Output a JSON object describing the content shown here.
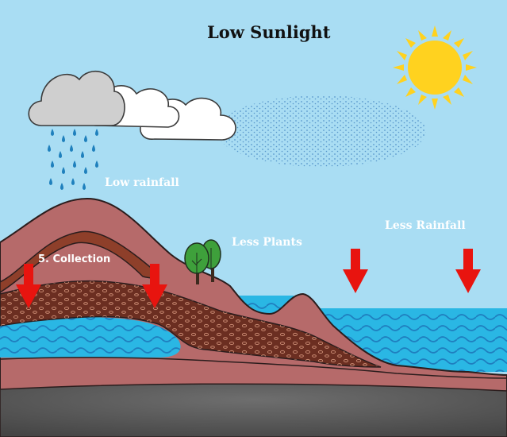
{
  "title": "Low Sunlight",
  "labels": {
    "low_rainfall": "Low rainfall",
    "less_plants": "Less Plants",
    "less_rainfall": "Less Rainfall",
    "collection": "5. Collection"
  },
  "colors": {
    "sky": "#a9ddf3",
    "sun": "#ffd21f",
    "rain_drop": "#1f80bd",
    "water": "#2ab7e4",
    "soil_pink": "#b66a6a",
    "soil_brown": "#6b2e21",
    "bedrock": "#5e5e5e",
    "arrow": "#e8140f",
    "tree": "#3ea03b"
  },
  "icons": [
    "sun-icon",
    "rain-cloud-icon",
    "cloud-icon",
    "tree-icon",
    "down-arrow-icon",
    "water-wave-icon"
  ]
}
